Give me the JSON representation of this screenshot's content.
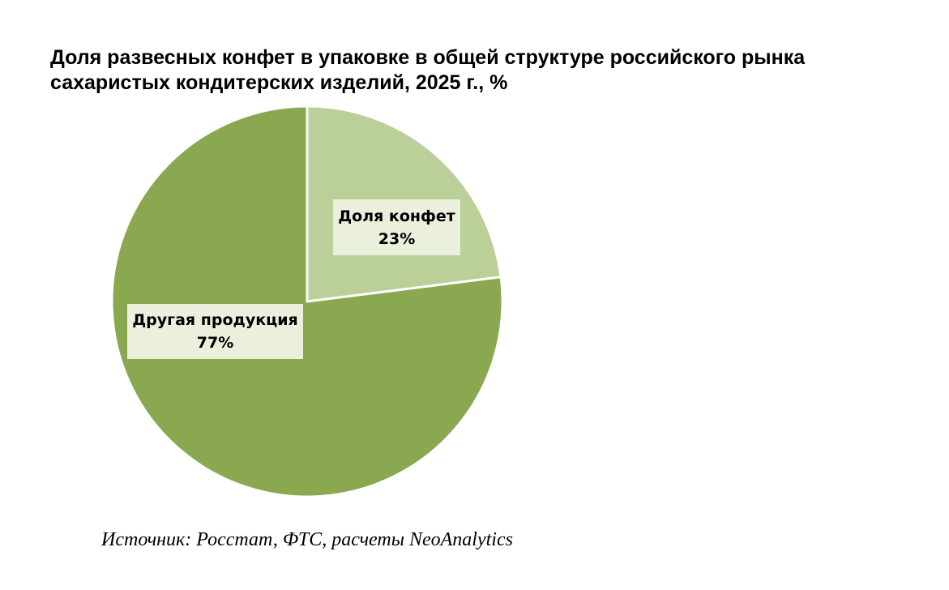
{
  "chart_data": {
    "type": "pie",
    "title_lines": [
      "Доля развесных конфет в упаковке в общей структуре российского рынка",
      "сахаристых кондитерских изделий, 2025 г., %"
    ],
    "slices": [
      {
        "name": "Доля конфет",
        "value": 23,
        "value_label": "23%",
        "color": "#bbcf98"
      },
      {
        "name": "Другая продукция",
        "value": 77,
        "value_label": "77%",
        "color": "#8aa850"
      }
    ],
    "start": "12 o'clock, clockwise"
  },
  "source": "Источник: Росстат, ФТС, расчеты NeoAnalytics"
}
